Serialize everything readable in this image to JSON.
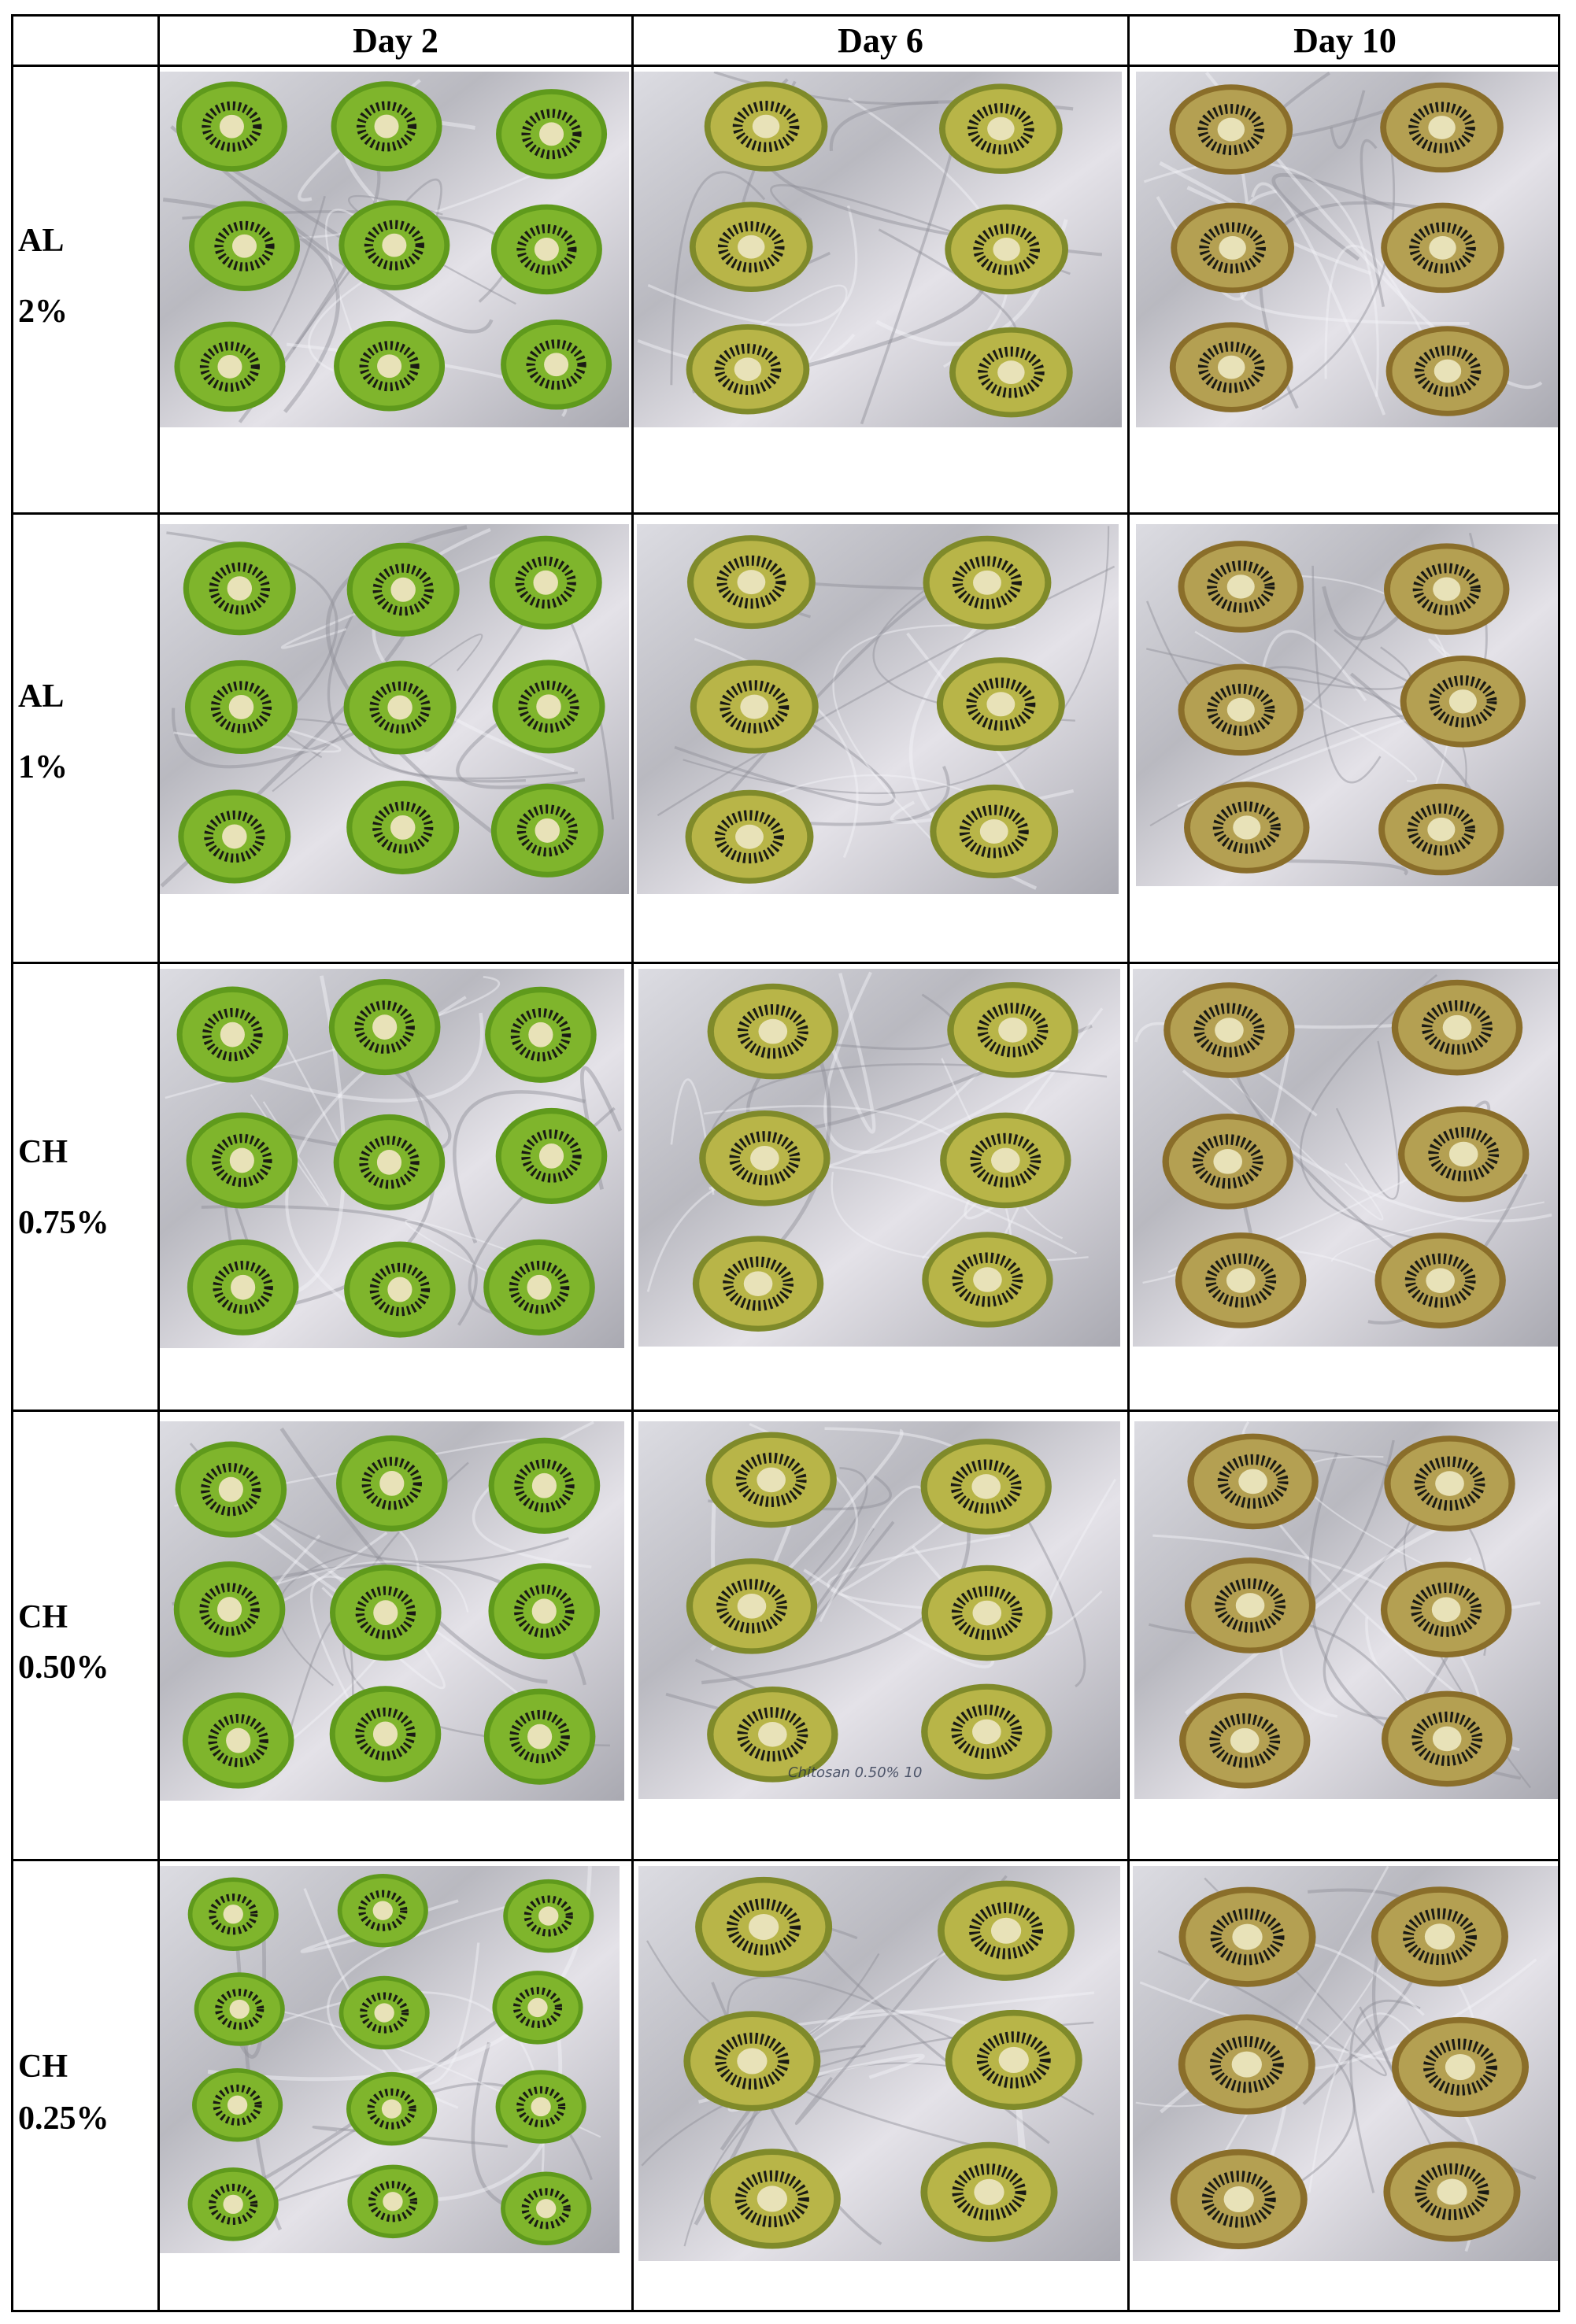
{
  "table": {
    "headers": [
      "",
      "Day 2",
      "Day 6",
      "Day 10"
    ],
    "rows": [
      {
        "label": [
          "AL",
          "2%"
        ]
      },
      {
        "label": [
          "AL",
          "1%"
        ]
      },
      {
        "label": [
          "CH",
          "0.75%"
        ]
      },
      {
        "label": [
          "CH",
          "0.50%"
        ]
      },
      {
        "label": [
          "CH",
          "0.25%"
        ]
      }
    ],
    "photo_note": "Chitosan 0.50% 10"
  },
  "colors": {
    "foil": "#c9c9cd",
    "day2_flesh": "#7fb52c",
    "day6_flesh": "#b8b548",
    "day10_flesh": "#b4a052",
    "seed": "#1a1a14",
    "core": "#e8e2b8"
  },
  "icons": {
    "photo": "kiwi-slice-photo"
  }
}
